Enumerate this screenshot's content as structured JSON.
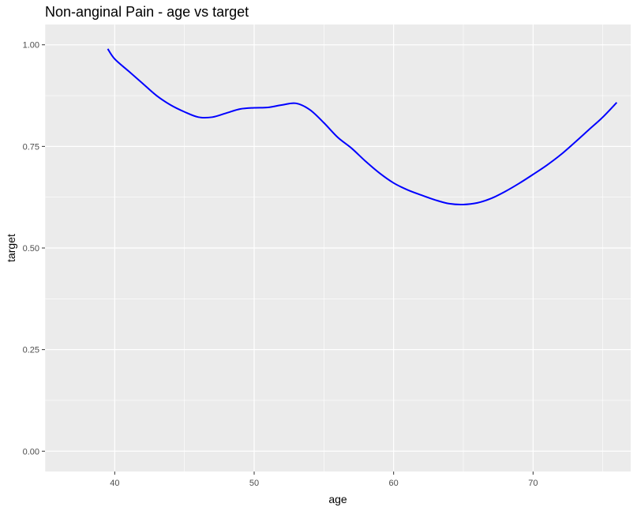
{
  "chart_data": {
    "type": "line",
    "title": "Non-anginal Pain - age vs target",
    "xlabel": "age",
    "ylabel": "target",
    "xlim": [
      35,
      77
    ],
    "ylim": [
      -0.05,
      1.05
    ],
    "x_ticks": [
      40,
      50,
      60,
      70
    ],
    "x_tick_labels": [
      "40",
      "50",
      "60",
      "70"
    ],
    "y_ticks": [
      0,
      0.25,
      0.5,
      0.75,
      1.0
    ],
    "y_tick_labels": [
      "0.00",
      "0.25",
      "0.50",
      "0.75",
      "1.00"
    ],
    "grid": true,
    "legend": "none",
    "colors": {
      "panel": "#ebebeb",
      "grid": "#ffffff",
      "line": "#0000ff"
    },
    "series": [
      {
        "x": [
          39.5,
          40.0,
          41.0,
          42.0,
          43.0,
          44.0,
          45.0,
          46.0,
          47.0,
          48.0,
          49.0,
          50.0,
          51.0,
          52.0,
          53.0,
          54.0,
          55.0,
          56.0,
          57.0,
          58.0,
          59.0,
          60.0,
          61.0,
          62.0,
          63.0,
          64.0,
          65.0,
          66.0,
          67.0,
          68.0,
          69.0,
          70.0,
          71.0,
          72.0,
          73.0,
          74.0,
          75.0,
          76.0
        ],
        "y": [
          0.99,
          0.965,
          0.935,
          0.905,
          0.875,
          0.852,
          0.835,
          0.822,
          0.822,
          0.832,
          0.842,
          0.845,
          0.846,
          0.852,
          0.856,
          0.84,
          0.808,
          0.772,
          0.745,
          0.713,
          0.684,
          0.66,
          0.643,
          0.63,
          0.618,
          0.609,
          0.607,
          0.611,
          0.622,
          0.639,
          0.659,
          0.681,
          0.704,
          0.73,
          0.76,
          0.791,
          0.822,
          0.858
        ]
      }
    ]
  }
}
